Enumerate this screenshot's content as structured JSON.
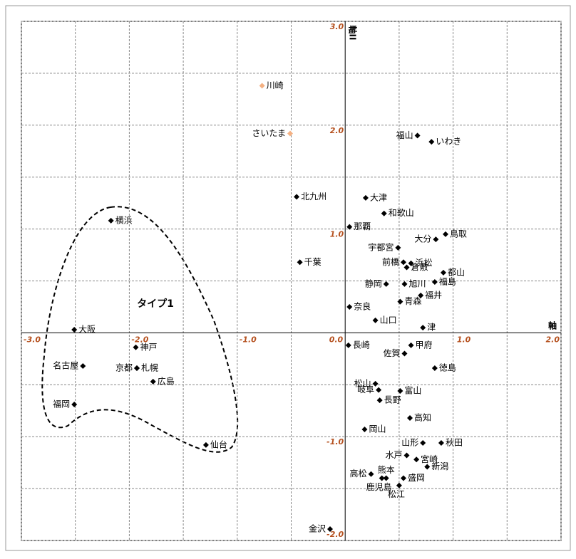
{
  "chart_data": {
    "type": "scatter",
    "xlabel": "軸",
    "ylabel": "軸II",
    "annotation": "タイプ1",
    "xlim": [
      -3,
      2
    ],
    "ylim": [
      -2,
      3
    ],
    "xticks": [
      {
        "value": -3,
        "label": "-3.0"
      },
      {
        "value": -2,
        "label": "-2.0"
      },
      {
        "value": -1,
        "label": "-1.0"
      },
      {
        "value": 0,
        "label": "0.0"
      },
      {
        "value": 1,
        "label": "1.0"
      },
      {
        "value": 2,
        "label": "2.0"
      }
    ],
    "yticks": [
      {
        "value": 3,
        "label": "3.0"
      },
      {
        "value": 2,
        "label": "2.0"
      },
      {
        "value": 1,
        "label": "1.0"
      },
      {
        "value": 0,
        "label": "0.0"
      },
      {
        "value": -1,
        "label": "-1.0"
      },
      {
        "value": -2,
        "label": "-2.0"
      }
    ],
    "xminor": [
      -2.5,
      -1.5,
      -0.5,
      0.5,
      1.5
    ],
    "yminor": [
      2.5,
      1.5,
      0.5,
      -0.5,
      -1.5
    ],
    "grid": true,
    "series": [
      {
        "color": "#000000",
        "labels": [
          "福山",
          "いわき",
          "北九州",
          "大津",
          "和歌山",
          "那覇",
          "横浜",
          "鳥取",
          "大分",
          "宇都宮",
          "千葉",
          "浜松",
          "前橋",
          "倉敷",
          "都山",
          "静岡",
          "旭川",
          "福島",
          "福井",
          "奈良",
          "青森",
          "山口",
          "津",
          "大阪",
          "長崎",
          "甲府",
          "神戸",
          "佐賀",
          "名古屋",
          "京都",
          "札幌",
          "徳島",
          "広島",
          "松山",
          "岐阜",
          "富山",
          "長野",
          "福岡",
          "高知",
          "岡山",
          "山形",
          "秋田",
          "仙台",
          "水戸",
          "宮崎",
          "新潟",
          "熊本",
          "高松",
          "鹿児島",
          "盛岡",
          "松江",
          "金沢"
        ],
        "x": [
          0.67,
          0.8,
          -0.45,
          0.19,
          0.36,
          0.04,
          -2.17,
          0.93,
          0.84,
          0.49,
          -0.42,
          0.61,
          0.54,
          0.57,
          0.91,
          0.38,
          0.55,
          0.83,
          0.7,
          0.04,
          0.51,
          0.28,
          0.72,
          -2.51,
          0.03,
          0.61,
          -1.94,
          0.55,
          -2.43,
          -1.93,
          -1.93,
          0.83,
          -1.78,
          0.28,
          0.31,
          0.51,
          0.32,
          -2.51,
          0.6,
          0.18,
          0.72,
          0.89,
          -1.29,
          0.57,
          0.66,
          0.76,
          0.38,
          0.24,
          0.34,
          0.54,
          0.5,
          -0.14
        ],
        "y": [
          1.9,
          1.84,
          1.31,
          1.3,
          1.15,
          1.02,
          1.08,
          0.95,
          0.9,
          0.82,
          0.68,
          0.67,
          0.68,
          0.63,
          0.58,
          0.47,
          0.47,
          0.49,
          0.36,
          0.25,
          0.3,
          0.12,
          0.05,
          0.03,
          -0.12,
          -0.12,
          -0.14,
          -0.2,
          -0.32,
          -0.34,
          -0.34,
          -0.34,
          -0.47,
          -0.49,
          -0.55,
          -0.56,
          -0.65,
          -0.69,
          -0.82,
          -0.93,
          -1.06,
          -1.06,
          -1.08,
          -1.18,
          -1.22,
          -1.29,
          -1.4,
          -1.36,
          -1.4,
          -1.4,
          -1.47,
          -1.89
        ]
      },
      {
        "color": "#f4b183",
        "labels": [
          "川崎",
          "さいたま"
        ],
        "x": [
          -0.77,
          -0.51
        ],
        "y": [
          2.38,
          1.92
        ]
      }
    ]
  }
}
